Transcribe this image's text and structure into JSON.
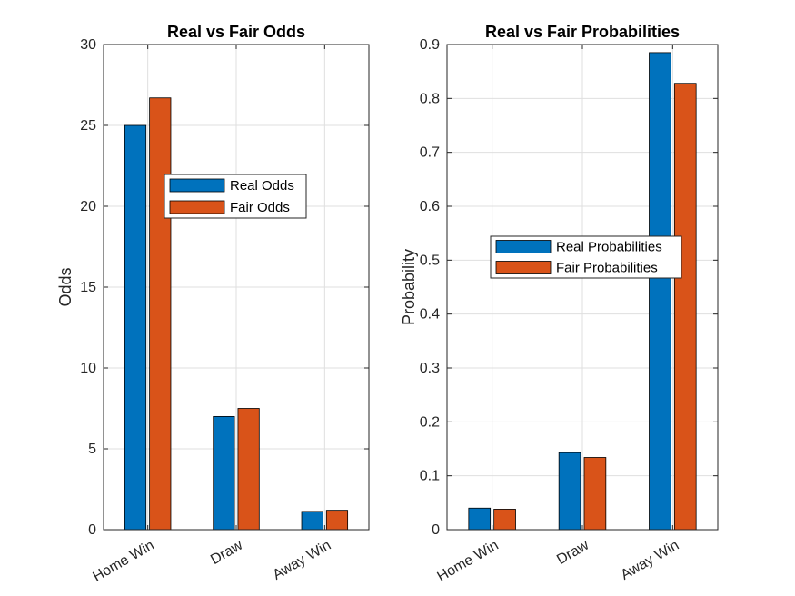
{
  "chart_data": [
    {
      "type": "bar",
      "title": "Real vs Fair Odds",
      "xlabel": "",
      "ylabel": "Odds",
      "categories": [
        "Home Win",
        "Draw",
        "Away Win"
      ],
      "ylim": [
        0,
        30
      ],
      "yticks": [
        0,
        5,
        10,
        15,
        20,
        25,
        30
      ],
      "grid": true,
      "legend": "center-right",
      "series": [
        {
          "name": "Real Odds",
          "color": "#0072BD",
          "values": [
            25.0,
            7.0,
            1.13
          ]
        },
        {
          "name": "Fair Odds",
          "color": "#D95319",
          "values": [
            26.7,
            7.5,
            1.2
          ]
        }
      ]
    },
    {
      "type": "bar",
      "title": "Real vs Fair Probabilities",
      "xlabel": "",
      "ylabel": "Probability",
      "categories": [
        "Home Win",
        "Draw",
        "Away Win"
      ],
      "ylim": [
        0,
        0.9
      ],
      "yticks": [
        0,
        0.1,
        0.2,
        0.3,
        0.4,
        0.5,
        0.6,
        0.7,
        0.8,
        0.9
      ],
      "grid": true,
      "legend": "center",
      "series": [
        {
          "name": "Real Probabilities",
          "color": "#0072BD",
          "values": [
            0.04,
            0.143,
            0.885
          ]
        },
        {
          "name": "Fair Probabilities",
          "color": "#D95319",
          "values": [
            0.038,
            0.134,
            0.828
          ]
        }
      ]
    }
  ]
}
